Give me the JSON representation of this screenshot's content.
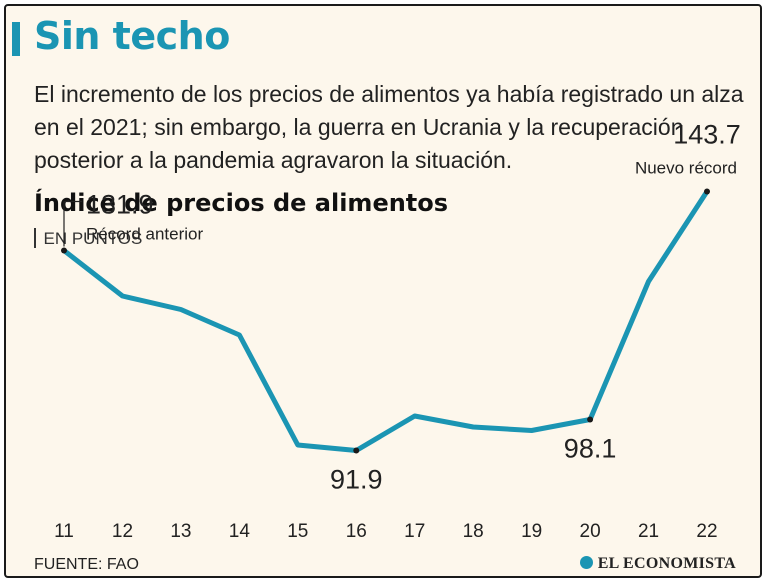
{
  "header": {
    "title": "Sin techo",
    "subtitle": "El incremento de los precios de alimentos ya había registrado un alza en el 2021; sin embargo, la guerra en Ucrania y la recuperación posterior a la pandemia agravaron la situación."
  },
  "footer": {
    "source": "FUENTE: FAO",
    "brand": "EL ECONOMISTA"
  },
  "colors": {
    "accent": "#1b95b3",
    "background": "#fdf7ec"
  },
  "chart_data": {
    "type": "line",
    "title": "Índice de precios de alimentos",
    "units": "EN PUNTOS",
    "categories": [
      "11",
      "12",
      "13",
      "14",
      "15",
      "16",
      "17",
      "18",
      "19",
      "20",
      "21",
      "22"
    ],
    "values": [
      131.9,
      122.8,
      120.1,
      115.0,
      93.0,
      91.9,
      98.8,
      96.6,
      95.9,
      98.1,
      125.7,
      143.7
    ],
    "ylim": [
      80,
      150
    ],
    "annotations": [
      {
        "index": 0,
        "value": "131.9",
        "note": "Récord anterior"
      },
      {
        "index": 5,
        "value": "91.9"
      },
      {
        "index": 9,
        "value": "98.1"
      },
      {
        "index": 11,
        "value": "143.7",
        "note": "Nuevo récord"
      }
    ]
  }
}
